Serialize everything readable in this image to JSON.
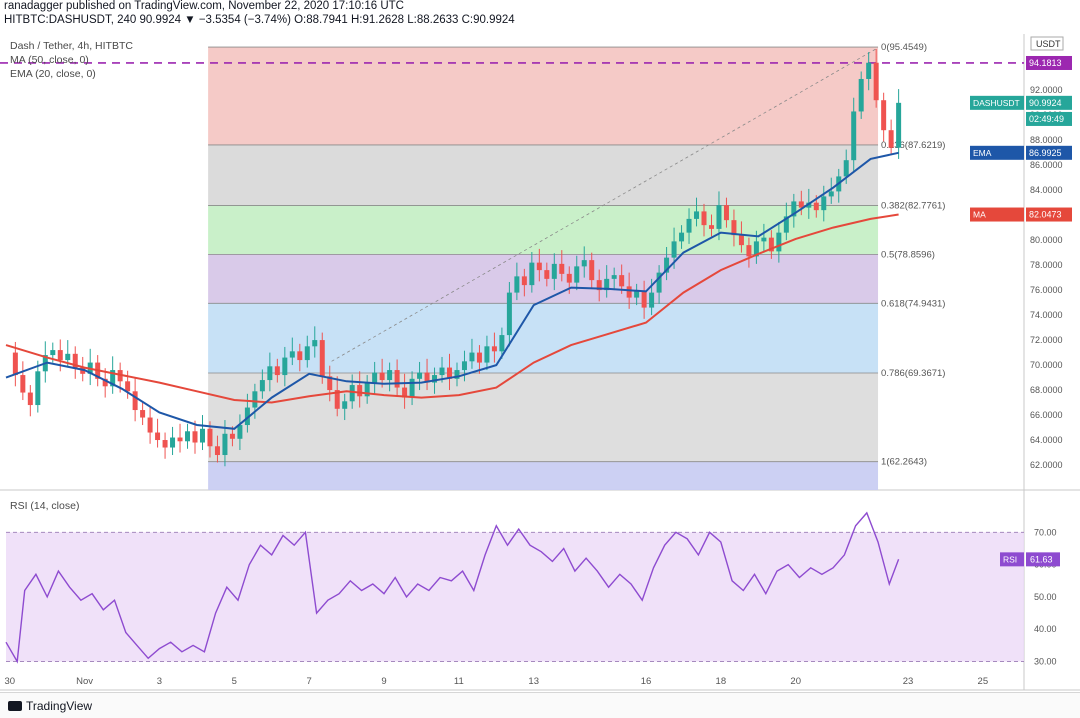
{
  "header": {
    "line1": "ranadagger published on TradingView.com, November 22, 2020 17:10:16 UTC",
    "line2_symbol": "HITBTC:DASHUSDT, 240",
    "line2_values": "90.9924 ▼ −3.5354 (−3.74%) O:88.7941 H:91.2628 L:88.2633 C:90.9924"
  },
  "legend": {
    "title": "Dash / Tether, 4h, HITBTC",
    "ma": "MA (50, close, 0)",
    "ema": "EMA (20, close, 0)"
  },
  "rsi_label": "RSI (14, close)",
  "footer": {
    "brand": "TradingView"
  },
  "colors": {
    "up": "#26a69a",
    "down": "#ef5350",
    "ema": "#1e57a8",
    "ma": "#e5483b",
    "rsi": "#8e4bd0",
    "dash": "#9c27b0"
  },
  "chart_data": [
    {
      "type": "candlestick",
      "title": "Dash / Tether, 4h, HITBTC",
      "yaxis_unit": "USDT",
      "ylim": [
        60,
        96.5
      ],
      "yticks": [
        "62.0000",
        "64.0000",
        "66.0000",
        "68.0000",
        "70.0000",
        "72.0000",
        "74.0000",
        "76.0000",
        "78.0000",
        "80.0000",
        "82.0000",
        "84.0000",
        "86.0000",
        "88.0000",
        "90.0000",
        "92.0000"
      ],
      "xticks": [
        {
          "label": "30",
          "day": -1
        },
        {
          "label": "Nov",
          "day": 1
        },
        {
          "label": "3",
          "day": 3
        },
        {
          "label": "5",
          "day": 5
        },
        {
          "label": "7",
          "day": 7
        },
        {
          "label": "9",
          "day": 9
        },
        {
          "label": "11",
          "day": 11
        },
        {
          "label": "13",
          "day": 13
        },
        {
          "label": "16",
          "day": 16
        },
        {
          "label": "18",
          "day": 18
        },
        {
          "label": "20",
          "day": 20
        },
        {
          "label": "23",
          "day": 23
        },
        {
          "label": "25",
          "day": 25
        }
      ],
      "xlim": [
        -1.1,
        26.1
      ],
      "candles_close": [
        [
          -1.05,
          71.0
        ],
        [
          -0.85,
          69.2
        ],
        [
          -0.65,
          67.8
        ],
        [
          -0.45,
          66.8
        ],
        [
          -0.25,
          69.5
        ],
        [
          -0.05,
          70.8
        ],
        [
          0.15,
          71.2
        ],
        [
          0.35,
          70.4
        ],
        [
          0.55,
          70.9
        ],
        [
          0.75,
          69.8
        ],
        [
          0.95,
          69.3
        ],
        [
          1.15,
          70.2
        ],
        [
          1.35,
          68.9
        ],
        [
          1.55,
          68.3
        ],
        [
          1.75,
          69.6
        ],
        [
          1.95,
          68.7
        ],
        [
          2.15,
          67.9
        ],
        [
          2.35,
          66.4
        ],
        [
          2.55,
          65.8
        ],
        [
          2.75,
          64.6
        ],
        [
          2.95,
          64.0
        ],
        [
          3.15,
          63.4
        ],
        [
          3.35,
          64.2
        ],
        [
          3.55,
          63.9
        ],
        [
          3.75,
          64.7
        ],
        [
          3.95,
          63.8
        ],
        [
          4.15,
          64.9
        ],
        [
          4.35,
          63.5
        ],
        [
          4.55,
          62.8
        ],
        [
          4.75,
          64.5
        ],
        [
          4.95,
          64.1
        ],
        [
          5.15,
          65.2
        ],
        [
          5.35,
          66.6
        ],
        [
          5.55,
          67.9
        ],
        [
          5.75,
          68.8
        ],
        [
          5.95,
          69.9
        ],
        [
          6.15,
          69.2
        ],
        [
          6.35,
          70.6
        ],
        [
          6.55,
          71.1
        ],
        [
          6.75,
          70.4
        ],
        [
          6.95,
          71.5
        ],
        [
          7.15,
          72.0
        ],
        [
          7.35,
          69.1
        ],
        [
          7.55,
          68.0
        ],
        [
          7.75,
          66.5
        ],
        [
          7.95,
          67.1
        ],
        [
          8.15,
          68.4
        ],
        [
          8.35,
          67.5
        ],
        [
          8.55,
          68.6
        ],
        [
          8.75,
          69.4
        ],
        [
          8.95,
          68.8
        ],
        [
          9.15,
          69.6
        ],
        [
          9.35,
          68.2
        ],
        [
          9.55,
          67.4
        ],
        [
          9.75,
          68.9
        ],
        [
          9.95,
          69.4
        ],
        [
          10.15,
          68.6
        ],
        [
          10.35,
          69.2
        ],
        [
          10.55,
          69.8
        ],
        [
          10.75,
          68.9
        ],
        [
          10.95,
          69.6
        ],
        [
          11.15,
          70.3
        ],
        [
          11.35,
          71.0
        ],
        [
          11.55,
          70.2
        ],
        [
          11.75,
          71.5
        ],
        [
          11.95,
          71.1
        ],
        [
          12.15,
          72.4
        ],
        [
          12.35,
          75.8
        ],
        [
          12.55,
          77.1
        ],
        [
          12.75,
          76.4
        ],
        [
          12.95,
          78.2
        ],
        [
          13.15,
          77.6
        ],
        [
          13.35,
          76.9
        ],
        [
          13.55,
          78.1
        ],
        [
          13.75,
          77.3
        ],
        [
          13.95,
          76.6
        ],
        [
          14.15,
          77.9
        ],
        [
          14.35,
          78.4
        ],
        [
          14.55,
          76.8
        ],
        [
          14.75,
          76.0
        ],
        [
          14.95,
          76.9
        ],
        [
          15.15,
          77.2
        ],
        [
          15.35,
          76.3
        ],
        [
          15.55,
          75.4
        ],
        [
          15.75,
          75.9
        ],
        [
          15.95,
          74.6
        ],
        [
          16.15,
          75.8
        ],
        [
          16.35,
          77.4
        ],
        [
          16.55,
          78.6
        ],
        [
          16.75,
          79.9
        ],
        [
          16.95,
          80.6
        ],
        [
          17.15,
          81.7
        ],
        [
          17.35,
          82.3
        ],
        [
          17.55,
          81.2
        ],
        [
          17.75,
          80.9
        ],
        [
          17.95,
          82.8
        ],
        [
          18.15,
          81.6
        ],
        [
          18.35,
          80.4
        ],
        [
          18.55,
          79.6
        ],
        [
          18.75,
          78.7
        ],
        [
          18.95,
          79.9
        ],
        [
          19.15,
          80.2
        ],
        [
          19.35,
          79.1
        ],
        [
          19.55,
          80.6
        ],
        [
          19.75,
          81.9
        ],
        [
          19.95,
          83.1
        ],
        [
          20.15,
          82.6
        ],
        [
          20.35,
          83.0
        ],
        [
          20.55,
          82.4
        ],
        [
          20.75,
          83.5
        ],
        [
          20.95,
          83.9
        ],
        [
          21.15,
          85.1
        ],
        [
          21.35,
          86.4
        ],
        [
          21.55,
          90.3
        ],
        [
          21.75,
          92.9
        ],
        [
          21.95,
          94.2
        ],
        [
          22.15,
          91.2
        ],
        [
          22.35,
          88.8
        ],
        [
          22.55,
          87.4
        ],
        [
          22.75,
          90.99
        ]
      ],
      "ema_20": [
        [
          -1.1,
          69.0
        ],
        [
          0,
          70.2
        ],
        [
          1,
          69.6
        ],
        [
          2,
          68.1
        ],
        [
          3,
          66.2
        ],
        [
          4,
          65.2
        ],
        [
          5,
          64.9
        ],
        [
          6,
          67.4
        ],
        [
          7,
          69.3
        ],
        [
          8,
          68.7
        ],
        [
          9,
          68.5
        ],
        [
          10,
          68.6
        ],
        [
          11,
          69.1
        ],
        [
          12,
          70.0
        ],
        [
          13,
          74.8
        ],
        [
          14,
          76.2
        ],
        [
          15,
          76.1
        ],
        [
          16,
          75.9
        ],
        [
          17,
          79.0
        ],
        [
          18,
          80.6
        ],
        [
          19,
          80.3
        ],
        [
          20,
          82.2
        ],
        [
          21,
          84.2
        ],
        [
          22,
          86.5
        ],
        [
          22.75,
          86.99
        ]
      ],
      "ma_50": [
        [
          -1.1,
          71.6
        ],
        [
          0,
          70.6
        ],
        [
          1,
          69.8
        ],
        [
          2,
          69.2
        ],
        [
          3,
          68.6
        ],
        [
          4,
          67.9
        ],
        [
          5,
          67.2
        ],
        [
          6,
          67.0
        ],
        [
          7,
          67.5
        ],
        [
          8,
          67.9
        ],
        [
          9,
          67.6
        ],
        [
          10,
          67.4
        ],
        [
          11,
          67.6
        ],
        [
          12,
          68.2
        ],
        [
          13,
          70.2
        ],
        [
          14,
          71.6
        ],
        [
          15,
          72.5
        ],
        [
          16,
          73.4
        ],
        [
          17,
          75.8
        ],
        [
          18,
          77.6
        ],
        [
          19,
          78.9
        ],
        [
          20,
          80.1
        ],
        [
          21,
          81.0
        ],
        [
          22,
          81.7
        ],
        [
          22.75,
          82.05
        ]
      ],
      "fibonacci": {
        "from_day": 4.3,
        "to_day": 22.2,
        "levels": [
          {
            "label": "0(95.4549)",
            "ratio": "0",
            "price": 95.4549,
            "fill": "#f4c7c4"
          },
          {
            "label": "0.236(87.6219)",
            "ratio": "0.236",
            "price": 87.6219,
            "fill": "#d9d9d9"
          },
          {
            "label": "0.382(82.7761)",
            "ratio": "0.382",
            "price": 82.7761,
            "fill": "#c6efc6"
          },
          {
            "label": "0.5(78.8596)",
            "ratio": "0.5",
            "price": 78.8596,
            "fill": "#d7c7e8"
          },
          {
            "label": "0.618(74.9431)",
            "ratio": "0.618",
            "price": 74.9431,
            "fill": "#c4dff6"
          },
          {
            "label": "0.786(69.3671)",
            "ratio": "0.786",
            "price": 69.3671,
            "fill": "#dcdcdc"
          },
          {
            "label": "1(62.2643)",
            "ratio": "1",
            "price": 62.2643,
            "fill": "#c9cdf2"
          }
        ]
      },
      "resistance_line": 94.1813,
      "price_tags": [
        {
          "name": "dashusdt",
          "text": "DASHUSDT",
          "value": "90.9924",
          "price": 90.99,
          "color": "#26a69a"
        },
        {
          "name": "countdown",
          "text": "",
          "value": "02:49:49",
          "price": 89.7,
          "color": "#26a69a"
        },
        {
          "name": "ema",
          "text": "EMA",
          "value": "86.9925",
          "price": 86.99,
          "color": "#1e57a8"
        },
        {
          "name": "ma",
          "text": "MA",
          "value": "82.0473",
          "price": 82.05,
          "color": "#e5483b"
        },
        {
          "name": "level",
          "text": "",
          "value": "94.1813",
          "price": 94.18,
          "color": "#9c27b0"
        }
      ]
    },
    {
      "type": "line",
      "title": "RSI (14, close)",
      "ylim": [
        28,
        80
      ],
      "yticks": [
        "30.00",
        "40.00",
        "50.00",
        "60.00",
        "70.00"
      ],
      "band": [
        30,
        70
      ],
      "last": "61.63",
      "x": [
        -1.1,
        -0.8,
        -0.6,
        -0.3,
        0,
        0.3,
        0.6,
        0.9,
        1.2,
        1.5,
        1.8,
        2.1,
        2.4,
        2.7,
        3.0,
        3.3,
        3.6,
        3.9,
        4.2,
        4.5,
        4.8,
        5.1,
        5.4,
        5.7,
        6.0,
        6.3,
        6.6,
        6.9,
        7.2,
        7.5,
        7.8,
        8.1,
        8.4,
        8.7,
        9.0,
        9.3,
        9.6,
        9.9,
        10.2,
        10.5,
        10.8,
        11.1,
        11.4,
        11.7,
        12.0,
        12.3,
        12.6,
        12.9,
        13.2,
        13.5,
        13.8,
        14.1,
        14.4,
        14.7,
        15.0,
        15.3,
        15.6,
        15.9,
        16.2,
        16.5,
        16.8,
        17.1,
        17.4,
        17.7,
        18.0,
        18.3,
        18.6,
        18.9,
        19.2,
        19.5,
        19.8,
        20.1,
        20.4,
        20.7,
        21.0,
        21.3,
        21.6,
        21.9,
        22.2,
        22.5,
        22.75
      ],
      "y": [
        36,
        30,
        52,
        57,
        50,
        58,
        53,
        49,
        51,
        46,
        49,
        39,
        35,
        31,
        34,
        36,
        33,
        35,
        33,
        45,
        53,
        49,
        60,
        66,
        63,
        69,
        66,
        70,
        45,
        49,
        51,
        55,
        52,
        54,
        51,
        56,
        50,
        54,
        52,
        56,
        55,
        58,
        52,
        63,
        72,
        66,
        71,
        66,
        64,
        61,
        65,
        58,
        62,
        58,
        53,
        57,
        54,
        49,
        59,
        66,
        70,
        68,
        63,
        70,
        67,
        55,
        52,
        57,
        51,
        58,
        60,
        56,
        59,
        57,
        59,
        63,
        72,
        76,
        67,
        54,
        61.63
      ]
    }
  ]
}
